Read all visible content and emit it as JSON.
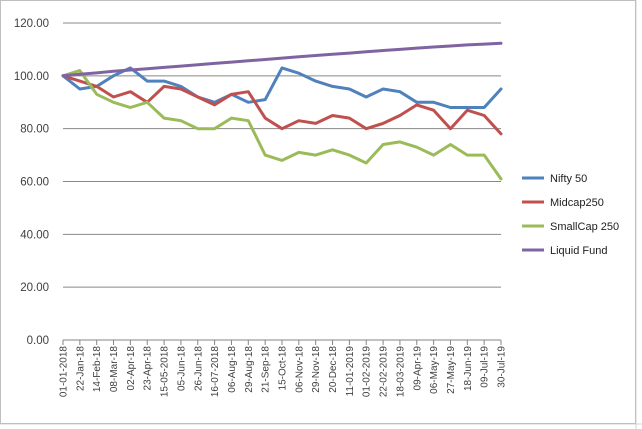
{
  "chart_data": {
    "type": "line",
    "title": "",
    "xlabel": "",
    "ylabel": "",
    "ylim": [
      0,
      120
    ],
    "y_ticks": [
      "0.00",
      "20.00",
      "40.00",
      "60.00",
      "80.00",
      "100.00",
      "120.00"
    ],
    "grid": "horizontal",
    "legend_position": "right",
    "x_tick_labels": [
      "01-01-2018",
      "22-Jan-18",
      "14-Feb-18",
      "08-Mar-18",
      "02-Apr-18",
      "23-Apr-18",
      "15-05-2018",
      "05-Jun-18",
      "26-Jun-18",
      "16-07-2018",
      "06-Aug-18",
      "29-Aug-18",
      "21-Sep-18",
      "15-Oct-18",
      "06-Nov-18",
      "29-Nov-18",
      "20-Dec-18",
      "11-01-2019",
      "01-02-2019",
      "22-02-2019",
      "18-03-2019",
      "09-Apr-19",
      "06-May-19",
      "27-May-19",
      "18-Jun-19",
      "09-Jul-19",
      "30-Jul-19"
    ],
    "series": [
      {
        "name": "Nifty 50",
        "color": "#4f81bd",
        "values": [
          100,
          95,
          96,
          100,
          103,
          98,
          98,
          96,
          92,
          90,
          93,
          90,
          91,
          103,
          101,
          98,
          96,
          95,
          92,
          95,
          94,
          90,
          90,
          88,
          88,
          88,
          95
        ]
      },
      {
        "name": "Midcap250",
        "color": "#c0504d",
        "values": [
          100,
          98,
          96,
          92,
          94,
          90,
          96,
          95,
          92,
          89,
          93,
          94,
          84,
          80,
          83,
          82,
          85,
          84,
          80,
          82,
          85,
          89,
          87,
          80,
          87,
          85,
          78
        ]
      },
      {
        "name": "SmallCap 250",
        "color": "#9bbb59",
        "values": [
          100,
          102,
          93,
          90,
          88,
          90,
          84,
          83,
          80,
          80,
          84,
          83,
          70,
          68,
          71,
          70,
          72,
          70,
          67,
          74,
          75,
          73,
          70,
          74,
          70,
          70,
          61
        ]
      },
      {
        "name": "Liquid Fund",
        "color": "#8064a2",
        "values": [
          100,
          100.6,
          101.1,
          101.7,
          102.2,
          102.7,
          103.2,
          103.7,
          104.2,
          104.7,
          105.2,
          105.7,
          106.2,
          106.7,
          107.2,
          107.7,
          108.2,
          108.6,
          109.1,
          109.6,
          110.0,
          110.5,
          110.9,
          111.3,
          111.7,
          112.0,
          112.3
        ]
      }
    ]
  }
}
